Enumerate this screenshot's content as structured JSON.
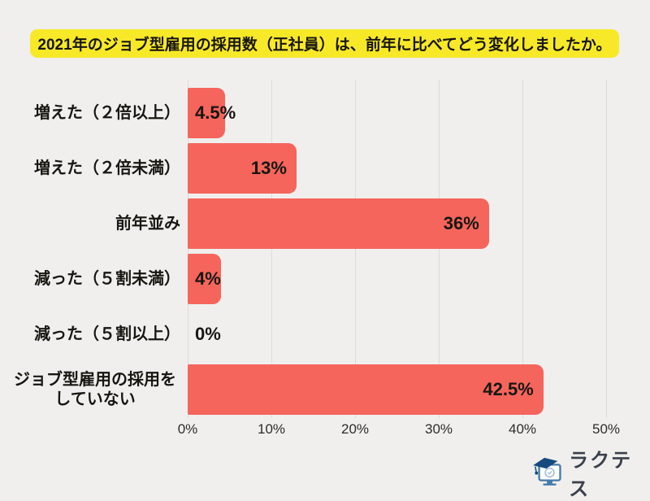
{
  "page": {
    "background": "#f0efed"
  },
  "title": {
    "text": "2021年のジョブ型雇用の採用数（正社員）は、前年に比べてどう変化しましたか。",
    "background": "#f7e928",
    "color": "#181611"
  },
  "chart_data": {
    "type": "bar",
    "orientation": "horizontal",
    "title": "2021年のジョブ型雇用の採用数（正社員）は、前年に比べてどう変化しましたか。",
    "categories": [
      "増えた（２倍以上）",
      "増えた（２倍未満）",
      "前年並み",
      "減った（５割未満）",
      "減った（５割以上）",
      "ジョブ型雇用の採用を\nしていない"
    ],
    "values": [
      4.5,
      13,
      36,
      4,
      0,
      42.5
    ],
    "value_labels": [
      "4.5%",
      "13%",
      "36%",
      "4%",
      "0%",
      "42.5%"
    ],
    "xlabel": "",
    "ylabel": "",
    "xlim": [
      0,
      50
    ],
    "x_ticks": [
      {
        "value": 0,
        "label": "0%"
      },
      {
        "value": 10,
        "label": "10%"
      },
      {
        "value": 20,
        "label": "20%"
      },
      {
        "value": 30,
        "label": "30%"
      },
      {
        "value": 40,
        "label": "40%"
      },
      {
        "value": 50,
        "label": "50%"
      }
    ],
    "grid": true,
    "legend": false,
    "bar_color": "#f5655c",
    "gridline_color": "#dcdbd8",
    "label_color": "#181611",
    "tick_color": "#2d2c28"
  },
  "logo": {
    "text": "ラクテス",
    "icon": "monitor-graduation-cap-icon",
    "text_color": "#39404c",
    "icon_colors": {
      "cap": "#164a7e",
      "monitor": "#4579aa",
      "screen_circle": "#a9c3dc"
    }
  }
}
